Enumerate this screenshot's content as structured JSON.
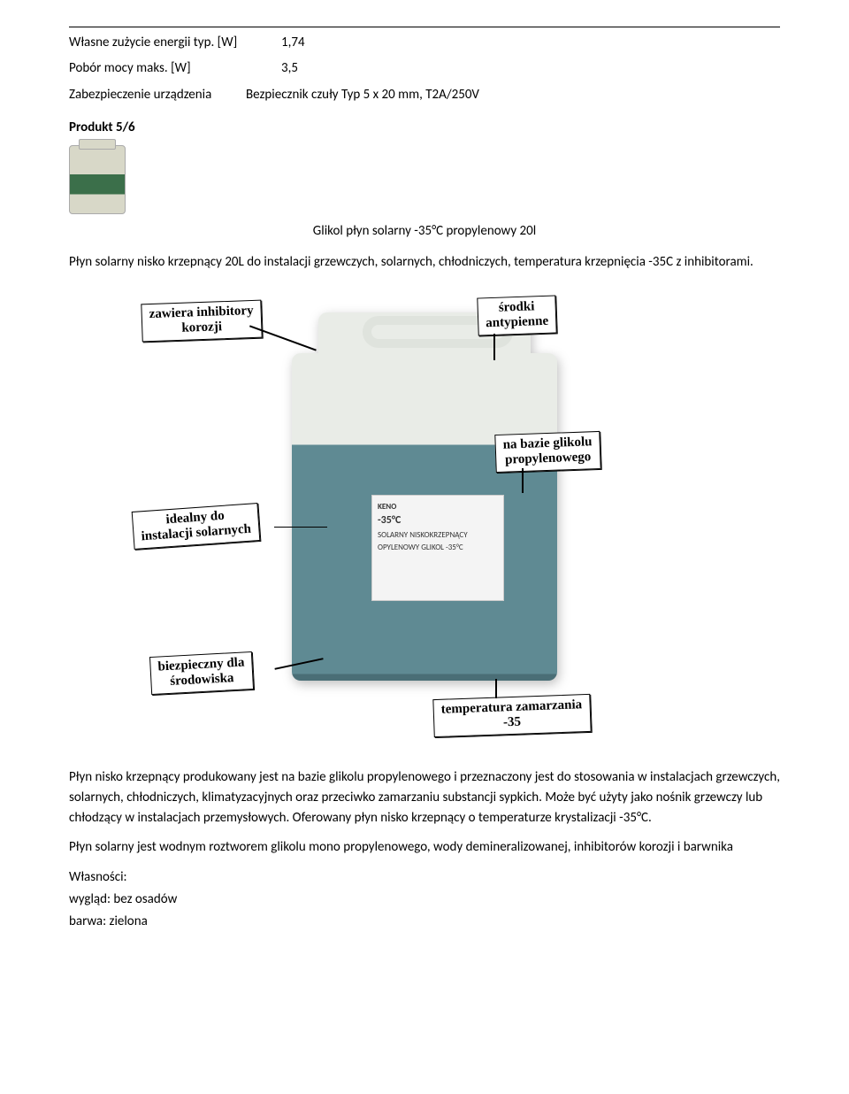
{
  "specs": {
    "row1": {
      "label": "Własne zużycie energii typ. [W]",
      "value": "1,74"
    },
    "row2": {
      "label": "Pobór mocy maks. [W]",
      "value": "3,5"
    },
    "row3": {
      "label": "Zabezpieczenie urządzenia",
      "value": "Bezpiecznik czuły Typ 5 x 20 mm, T2A/250V"
    }
  },
  "product_section": "Produkt 5/6",
  "product_title": "Glikol płyn solarny -35°C propylenowy 20l",
  "intro_para": "Płyn solarny nisko krzepnący 20L do instalacji  grzewczych, solarnych, chłodniczych, temperatura krzepnięcia -35C z inhibitorami.",
  "callouts": {
    "c1": "zawiera inhibitory\nkorozji",
    "c2": "środki\nantypienne",
    "c3": "na bazie glikolu\npropylenowego",
    "c4": "idealny do\ninstalacji solarnych",
    "c5": "biezpieczny dla\nśrodowiska",
    "c6": "temperatura zamarzania\n-35"
  },
  "jerry_label": {
    "temp": "-35°C",
    "line1": "SOLARNY NISKOKRZEPNĄCY",
    "line2": "OPYLENOWY GLIKOL -35°C"
  },
  "body_p1": "Płyn nisko krzepnący produkowany jest na bazie glikolu propylenowego i przeznaczony jest do stosowania w instalacjach grzewczych, solarnych, chłodniczych, klimatyzacyjnych oraz przeciwko zamarzaniu substancji sypkich. Może być użyty jako nośnik grzewczy lub chłodzący w instalacjach przemysłowych. Oferowany płyn nisko krzepnący o temperaturze krystalizacji  -35°C.",
  "body_p2": "Płyn solarny jest wodnym roztworem glikolu mono propylenowego, wody demineralizowanej, inhibitorów korozji i barwnika",
  "props_head": "Własności:",
  "prop1": "wygląd: bez osadów",
  "prop2": "barwa: zielona"
}
